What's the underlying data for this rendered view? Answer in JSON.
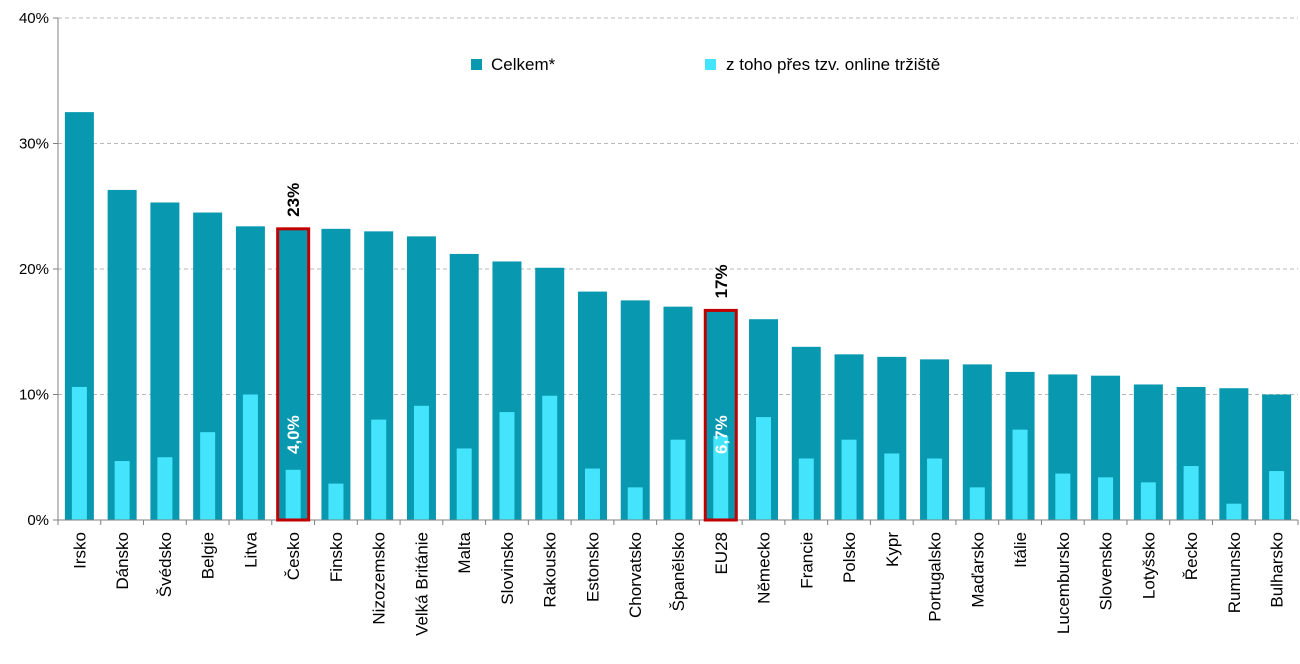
{
  "chart_data": {
    "type": "bar",
    "categories": [
      "Irsko",
      "Dánsko",
      "Švédsko",
      "Belgie",
      "Litva",
      "Česko",
      "Finsko",
      "Nizozemsko",
      "Velká Británie",
      "Malta",
      "Slovinsko",
      "Rakousko",
      "Estonsko",
      "Chorvatsko",
      "Španělsko",
      "EU28",
      "Německo",
      "Francie",
      "Polsko",
      "Kypr",
      "Portugalsko",
      "Maďarsko",
      "Itálie",
      "Lucembursko",
      "Slovensko",
      "Lotyšsko",
      "Řecko",
      "Rumunsko",
      "Bulharsko"
    ],
    "series": [
      {
        "name": "Celkem*",
        "color": "#0899b0",
        "values": [
          32.5,
          26.3,
          25.3,
          24.5,
          23.4,
          23.2,
          23.2,
          23.0,
          22.6,
          21.2,
          20.6,
          20.1,
          18.2,
          17.5,
          17.0,
          16.7,
          16.0,
          13.8,
          13.2,
          13.0,
          12.8,
          12.4,
          11.8,
          11.6,
          11.5,
          10.8,
          10.6,
          10.5,
          10.0
        ]
      },
      {
        "name": "z toho přes tzv. online tržiště",
        "color": "#44e4fc",
        "values": [
          10.6,
          4.7,
          5.0,
          7.0,
          10.0,
          4.0,
          2.9,
          8.0,
          9.1,
          5.7,
          8.6,
          9.9,
          4.1,
          2.6,
          6.4,
          6.7,
          8.2,
          4.9,
          6.4,
          5.3,
          4.9,
          2.6,
          7.2,
          3.7,
          3.4,
          3.0,
          4.3,
          1.3,
          3.9
        ]
      }
    ],
    "ylim": [
      0,
      40
    ],
    "yticks": [
      "0%",
      "10%",
      "20%",
      "30%",
      "40%"
    ],
    "grid": true,
    "legend_position": "top-center",
    "highlighted": [
      {
        "category": "Česko",
        "total_label": "23%",
        "sub_label": "4,0%"
      },
      {
        "category": "EU28",
        "total_label": "17%",
        "sub_label": "6,7%"
      }
    ],
    "highlight_color": "#c00000"
  }
}
